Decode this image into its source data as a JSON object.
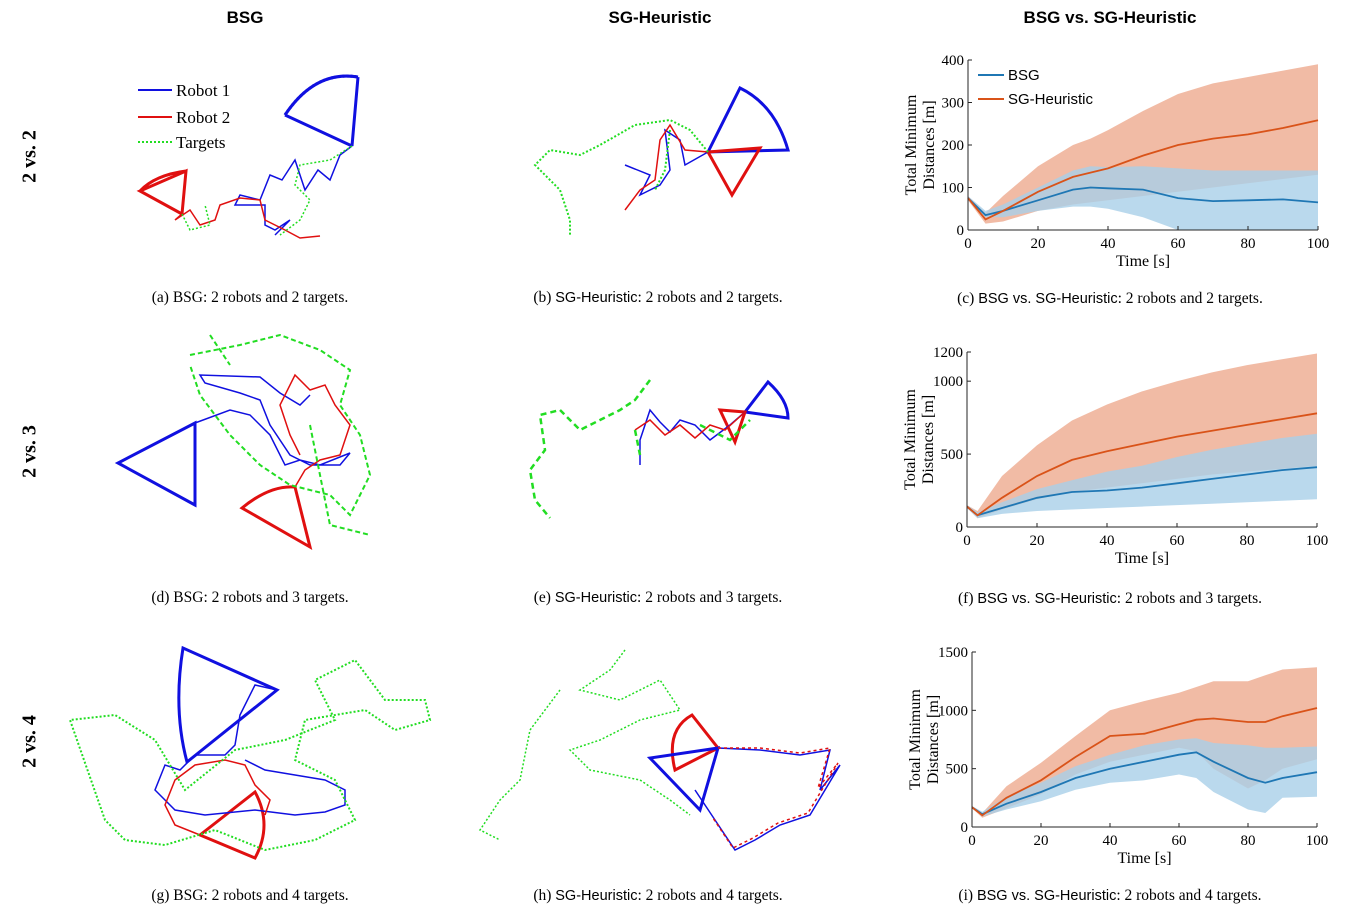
{
  "columns": [
    "BSG",
    "SG-Heuristic",
    "BSG vs. SG-Heuristic"
  ],
  "rows": [
    "2 vs. 2",
    "2 vs. 3",
    "2 vs. 4"
  ],
  "legend_left": [
    "Robot 1",
    "Robot 2",
    "Targets"
  ],
  "captions": [
    {
      "tag": "(a)",
      "method": "BSG",
      "text": ": 2 robots and 2 targets."
    },
    {
      "tag": "(b)",
      "method": "SG-Heuristic",
      "text": ": 2 robots and 2 targets."
    },
    {
      "tag": "(c)",
      "method": "BSG vs. SG-Heuristic",
      "text": ": 2 robots and 2 targets."
    },
    {
      "tag": "(d)",
      "method": "BSG",
      "text": ": 2 robots and 3 targets."
    },
    {
      "tag": "(e)",
      "method": "SG-Heuristic",
      "text": ": 2 robots and 3 targets."
    },
    {
      "tag": "(f)",
      "method": "BSG vs. SG-Heuristic",
      "text": ": 2 robots and 3 targets."
    },
    {
      "tag": "(g)",
      "method": "BSG",
      "text": ": 2 robots and 4 targets."
    },
    {
      "tag": "(h)",
      "method": "SG-Heuristic",
      "text": ": 2 robots and 4 targets."
    },
    {
      "tag": "(i)",
      "method": "BSG vs. SG-Heuristic",
      "text": ": 2 robots and 4 targets."
    }
  ],
  "colors": {
    "robot1": "#1010e0",
    "robot2": "#e01010",
    "targets": "#22dd22",
    "bsg": "#1f77b4",
    "sgh": "#d95319",
    "bsg_band": "#a9cfe8",
    "sgh_band": "#f0b49b"
  },
  "chart_data": [
    {
      "type": "line",
      "xlabel": "Time [s]",
      "ylabel": [
        "Total Minimum",
        "Distances [m]"
      ],
      "xlim": [
        0,
        100
      ],
      "ylim": [
        0,
        400
      ],
      "xticks": [
        0,
        20,
        40,
        60,
        80,
        100
      ],
      "yticks": [
        0,
        100,
        200,
        300,
        400
      ],
      "legend": "top-left",
      "x": [
        0,
        5,
        10,
        20,
        30,
        35,
        40,
        50,
        60,
        70,
        80,
        90,
        100
      ],
      "series": [
        {
          "name": "BSG",
          "values": [
            75,
            35,
            45,
            70,
            95,
            100,
            98,
            95,
            75,
            68,
            70,
            72,
            65
          ],
          "lower": [
            70,
            30,
            30,
            45,
            55,
            55,
            50,
            30,
            0,
            0,
            0,
            0,
            0
          ],
          "upper": [
            80,
            45,
            60,
            100,
            140,
            150,
            148,
            150,
            145,
            140,
            140,
            140,
            140
          ]
        },
        {
          "name": "SG-Heuristic",
          "values": [
            75,
            25,
            45,
            90,
            125,
            135,
            145,
            175,
            200,
            215,
            225,
            240,
            258
          ],
          "lower": [
            70,
            15,
            20,
            45,
            60,
            65,
            70,
            80,
            90,
            100,
            110,
            120,
            130
          ],
          "upper": [
            80,
            40,
            80,
            150,
            200,
            215,
            235,
            280,
            320,
            345,
            360,
            375,
            390
          ]
        }
      ]
    },
    {
      "type": "line",
      "xlabel": "Time [s]",
      "ylabel": [
        "Total Minimum",
        "Distances [m]"
      ],
      "xlim": [
        0,
        100
      ],
      "ylim": [
        0,
        1200
      ],
      "xticks": [
        0,
        20,
        40,
        60,
        80,
        100
      ],
      "yticks": [
        0,
        500,
        1000,
        1200
      ],
      "x": [
        0,
        3,
        10,
        20,
        30,
        40,
        50,
        60,
        70,
        80,
        90,
        100
      ],
      "series": [
        {
          "name": "BSG",
          "values": [
            140,
            80,
            130,
            200,
            240,
            250,
            270,
            300,
            330,
            360,
            390,
            410
          ],
          "lower": [
            130,
            60,
            90,
            110,
            120,
            130,
            140,
            150,
            160,
            170,
            180,
            190
          ],
          "upper": [
            150,
            100,
            170,
            260,
            320,
            380,
            420,
            480,
            530,
            570,
            610,
            640
          ]
        },
        {
          "name": "SG-Heuristic",
          "values": [
            140,
            80,
            200,
            350,
            460,
            520,
            570,
            620,
            660,
            700,
            740,
            780
          ],
          "lower": [
            130,
            60,
            120,
            190,
            240,
            270,
            300,
            330,
            360,
            380,
            400,
            420
          ],
          "upper": [
            150,
            110,
            350,
            560,
            730,
            840,
            930,
            1000,
            1060,
            1110,
            1150,
            1190
          ]
        }
      ]
    },
    {
      "type": "line",
      "xlabel": "Time [s]",
      "ylabel": [
        "Total Minimum",
        "Distances [m]"
      ],
      "xlim": [
        0,
        100
      ],
      "ylim": [
        0,
        1500
      ],
      "xticks": [
        0,
        20,
        40,
        60,
        80,
        100
      ],
      "yticks": [
        0,
        500,
        1000,
        1500
      ],
      "x": [
        0,
        3,
        10,
        20,
        30,
        40,
        50,
        60,
        65,
        70,
        80,
        85,
        90,
        100
      ],
      "series": [
        {
          "name": "BSG",
          "values": [
            170,
            110,
            200,
            300,
            420,
            500,
            560,
            620,
            640,
            560,
            420,
            380,
            420,
            470
          ],
          "lower": [
            160,
            90,
            150,
            220,
            320,
            380,
            400,
            450,
            420,
            300,
            150,
            120,
            250,
            260
          ],
          "upper": [
            180,
            130,
            260,
            380,
            520,
            620,
            700,
            750,
            760,
            720,
            700,
            680,
            680,
            690
          ]
        },
        {
          "name": "SG-Heuristic",
          "values": [
            170,
            100,
            250,
            400,
            600,
            780,
            800,
            880,
            920,
            930,
            900,
            900,
            950,
            1020
          ],
          "lower": [
            160,
            80,
            160,
            280,
            450,
            560,
            620,
            680,
            650,
            500,
            330,
            400,
            500,
            580
          ],
          "upper": [
            180,
            120,
            350,
            550,
            780,
            1000,
            1080,
            1150,
            1200,
            1250,
            1250,
            1300,
            1350,
            1370
          ]
        }
      ]
    }
  ]
}
